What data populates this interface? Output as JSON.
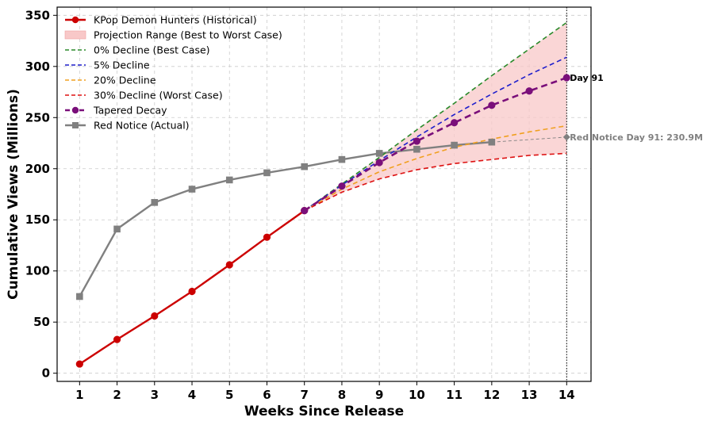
{
  "chart_data": {
    "type": "line",
    "title": "",
    "xlabel": "Weeks Since Release",
    "ylabel": "Cumulative Views (Millions)",
    "xlim": [
      0.4,
      14.65
    ],
    "ylim": [
      -8,
      358
    ],
    "x_ticks": [
      1,
      2,
      3,
      4,
      5,
      6,
      7,
      8,
      9,
      10,
      11,
      12,
      13,
      14
    ],
    "y_ticks": [
      0,
      50,
      100,
      150,
      200,
      250,
      300,
      350
    ],
    "grid": true,
    "legend_placement": "upper-left",
    "series": [
      {
        "name": "KPop Demon Hunters (Historical)",
        "style": "solid-circle",
        "color": "#cc0000",
        "x": [
          1,
          2,
          3,
          4,
          5,
          6,
          7
        ],
        "y": [
          9,
          33,
          56,
          80,
          106,
          133,
          159
        ]
      },
      {
        "name": "0% Decline (Best Case)",
        "style": "dashed",
        "color": "#2a8a2a",
        "x": [
          7,
          8,
          9,
          10,
          11,
          12,
          13,
          14
        ],
        "y": [
          159,
          185,
          211,
          238,
          264,
          291,
          317,
          343
        ]
      },
      {
        "name": "5% Decline",
        "style": "dashed",
        "color": "#1f1fcc",
        "x": [
          7,
          8,
          9,
          10,
          11,
          12,
          13,
          14
        ],
        "y": [
          159,
          184,
          208,
          231,
          253,
          273,
          292,
          309
        ]
      },
      {
        "name": "20% Decline",
        "style": "dashed",
        "color": "#f0a020",
        "x": [
          7,
          8,
          9,
          10,
          11,
          12,
          13,
          14
        ],
        "y": [
          159,
          180,
          197,
          210,
          221,
          229,
          236,
          242
        ]
      },
      {
        "name": "30% Decline (Worst Case)",
        "style": "dashed",
        "color": "#dd1111",
        "x": [
          7,
          8,
          9,
          10,
          11,
          12,
          13,
          14
        ],
        "y": [
          159,
          177,
          190,
          199,
          205,
          209,
          213,
          215
        ]
      },
      {
        "name": "Tapered Decay",
        "style": "dashed-circle",
        "color": "#7a0f7a",
        "x": [
          7,
          8,
          9,
          10,
          11,
          12,
          13,
          14
        ],
        "y": [
          159,
          183,
          206,
          227,
          245,
          262,
          276,
          289
        ]
      },
      {
        "name": "Red Notice (Actual)",
        "style": "solid-square",
        "color": "#808080",
        "x": [
          1,
          2,
          3,
          4,
          5,
          6,
          7,
          8,
          9,
          10,
          11,
          12
        ],
        "y": [
          75,
          141,
          167,
          180,
          189,
          196,
          202,
          209,
          215,
          219,
          223,
          226
        ]
      },
      {
        "name": "",
        "style": "thin-dashed-grey",
        "color": "#808080",
        "x": [
          12,
          14
        ],
        "y": [
          226,
          230.9
        ]
      }
    ],
    "projection_range": {
      "name": "Projection Range (Best to Worst Case)",
      "color": "#f8c8c8",
      "x": [
        7,
        8,
        9,
        10,
        11,
        12,
        13,
        14
      ],
      "upper": [
        159,
        185,
        211,
        238,
        264,
        291,
        317,
        343
      ],
      "lower": [
        159,
        177,
        190,
        199,
        205,
        209,
        213,
        215
      ]
    },
    "vertical_marker_x": 14,
    "annotations": [
      {
        "text": "Day 91",
        "x": 14,
        "y": 289,
        "color": "#000000"
      },
      {
        "text": "Red Notice Day 91: 230.9M",
        "x": 14,
        "y": 230.9,
        "color": "#808080"
      }
    ]
  }
}
